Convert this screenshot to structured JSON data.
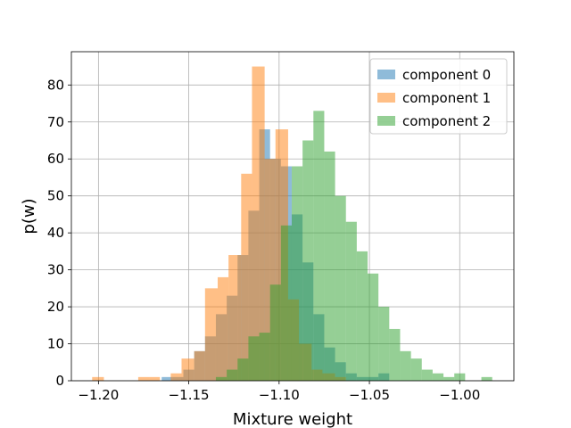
{
  "chart_data": {
    "type": "histogram",
    "xlabel": "Mixture weight",
    "ylabel": "p(w)",
    "xlim": [
      -1.215,
      -0.97
    ],
    "ylim": [
      0,
      89
    ],
    "xticks": [
      -1.2,
      -1.15,
      -1.1,
      -1.05,
      -1.0
    ],
    "xtick_labels": [
      "−1.20",
      "−1.15",
      "−1.10",
      "−1.05",
      "−1.00"
    ],
    "yticks": [
      0,
      10,
      20,
      30,
      40,
      50,
      60,
      70,
      80
    ],
    "ytick_labels": [
      "0",
      "10",
      "20",
      "30",
      "40",
      "50",
      "60",
      "70",
      "80"
    ],
    "grid": true,
    "legend_position": "top-right",
    "series": [
      {
        "name": "component 0",
        "color": "#1f77b4",
        "bins": [
          [
            -1.165,
            -1.159,
            1
          ],
          [
            -1.159,
            -1.153,
            1
          ],
          [
            -1.153,
            -1.147,
            3
          ],
          [
            -1.147,
            -1.141,
            8
          ],
          [
            -1.141,
            -1.135,
            12
          ],
          [
            -1.135,
            -1.129,
            18
          ],
          [
            -1.129,
            -1.123,
            23
          ],
          [
            -1.123,
            -1.117,
            34
          ],
          [
            -1.117,
            -1.111,
            46
          ],
          [
            -1.111,
            -1.105,
            68
          ],
          [
            -1.105,
            -1.099,
            60
          ],
          [
            -1.099,
            -1.093,
            58
          ],
          [
            -1.093,
            -1.087,
            45
          ],
          [
            -1.087,
            -1.081,
            32
          ],
          [
            -1.081,
            -1.075,
            18
          ],
          [
            -1.075,
            -1.069,
            9
          ],
          [
            -1.069,
            -1.063,
            5
          ],
          [
            -1.063,
            -1.057,
            2
          ],
          [
            -1.057,
            -1.051,
            1
          ],
          [
            -1.051,
            -1.045,
            1
          ],
          [
            -1.045,
            -1.039,
            2
          ]
        ]
      },
      {
        "name": "component 1",
        "color": "#ff7f0e",
        "bins": [
          [
            -1.2035,
            -1.197,
            1
          ],
          [
            -1.178,
            -1.172,
            1
          ],
          [
            -1.172,
            -1.166,
            1
          ],
          [
            -1.16,
            -1.154,
            2
          ],
          [
            -1.154,
            -1.147,
            6
          ],
          [
            -1.147,
            -1.141,
            8
          ],
          [
            -1.141,
            -1.134,
            25
          ],
          [
            -1.134,
            -1.128,
            28
          ],
          [
            -1.128,
            -1.121,
            34
          ],
          [
            -1.121,
            -1.115,
            56
          ],
          [
            -1.115,
            -1.108,
            85
          ],
          [
            -1.108,
            -1.102,
            60
          ],
          [
            -1.102,
            -1.095,
            68
          ],
          [
            -1.095,
            -1.089,
            22
          ],
          [
            -1.089,
            -1.082,
            10
          ],
          [
            -1.082,
            -1.076,
            3
          ],
          [
            -1.076,
            -1.069,
            2
          ],
          [
            -1.069,
            -1.063,
            1
          ]
        ]
      },
      {
        "name": "component 2",
        "color": "#2ca02c",
        "bins": [
          [
            -1.135,
            -1.129,
            1
          ],
          [
            -1.129,
            -1.123,
            3
          ],
          [
            -1.123,
            -1.117,
            6
          ],
          [
            -1.117,
            -1.111,
            12
          ],
          [
            -1.111,
            -1.105,
            13
          ],
          [
            -1.105,
            -1.099,
            26
          ],
          [
            -1.099,
            -1.093,
            42
          ],
          [
            -1.093,
            -1.087,
            58
          ],
          [
            -1.087,
            -1.081,
            65
          ],
          [
            -1.081,
            -1.075,
            73
          ],
          [
            -1.075,
            -1.069,
            62
          ],
          [
            -1.069,
            -1.063,
            50
          ],
          [
            -1.063,
            -1.057,
            43
          ],
          [
            -1.057,
            -1.051,
            35
          ],
          [
            -1.051,
            -1.045,
            29
          ],
          [
            -1.045,
            -1.039,
            20
          ],
          [
            -1.039,
            -1.033,
            14
          ],
          [
            -1.033,
            -1.027,
            8
          ],
          [
            -1.027,
            -1.021,
            6
          ],
          [
            -1.021,
            -1.015,
            3
          ],
          [
            -1.015,
            -1.009,
            2
          ],
          [
            -1.009,
            -1.003,
            1
          ],
          [
            -1.003,
            -0.997,
            2
          ],
          [
            -0.988,
            -0.982,
            1
          ]
        ]
      }
    ]
  }
}
